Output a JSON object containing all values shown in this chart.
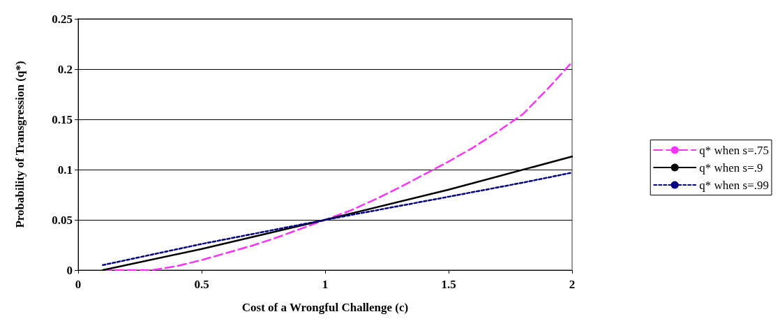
{
  "chart_data": {
    "type": "line",
    "xlabel": "Cost of a Wrongful Challenge (c)",
    "ylabel": "Probability of Transgression (q*)",
    "xlim": [
      0,
      2
    ],
    "xticks": [
      0,
      0.5,
      1,
      1.5,
      2
    ],
    "ylim": [
      0,
      0.25
    ],
    "yticks": [
      0,
      0.05,
      0.1,
      0.15,
      0.2,
      0.25
    ],
    "grid": "y",
    "legend": "right",
    "marker": "none",
    "series": [
      {
        "name": "q* when s=.75",
        "color": "#ff33ff",
        "line_style": "dashed",
        "x": [
          0.1,
          0.2,
          0.3,
          0.4,
          0.5,
          0.6,
          0.7,
          0.8,
          0.9,
          1,
          1.1,
          1.2,
          1.3,
          1.4,
          1.5,
          1.6,
          1.7,
          1.8,
          1.9,
          2
        ],
        "values": [
          0,
          0,
          0,
          0.004,
          0.01,
          0.017,
          0.024,
          0.032,
          0.041,
          0.05,
          0.059,
          0.07,
          0.082,
          0.095,
          0.108,
          0.122,
          0.138,
          0.155,
          0.18,
          0.207
        ]
      },
      {
        "name": "q* when s=.9",
        "color": "#000000",
        "line_style": "solid",
        "x": [
          0.1,
          0.5,
          1,
          1.5,
          2
        ],
        "values": [
          0,
          0.021,
          0.05,
          0.08,
          0.113
        ]
      },
      {
        "name": "q* when s=.99",
        "color": "#000080",
        "line_style": "dotted",
        "x": [
          0.1,
          0.5,
          1,
          1.5,
          1.8,
          2
        ],
        "values": [
          0.005,
          0.026,
          0.05,
          0.073,
          0.087,
          0.097
        ]
      }
    ]
  }
}
